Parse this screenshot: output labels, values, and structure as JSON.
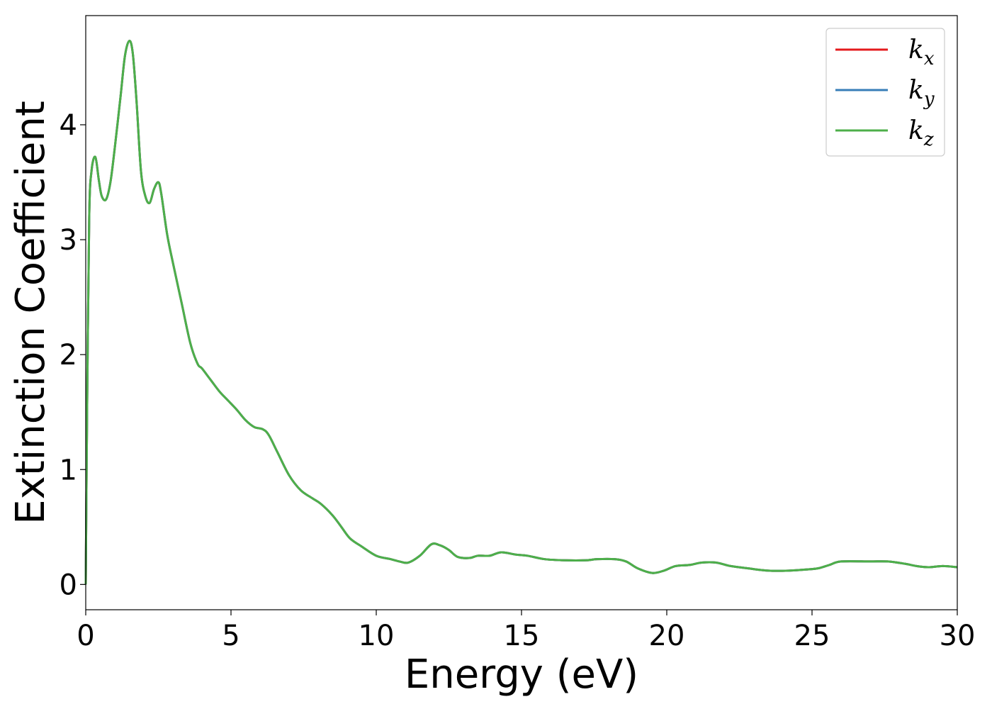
{
  "chart_data": {
    "type": "line",
    "title": "",
    "xlabel": "Energy (eV)",
    "ylabel": "Extinction Coefficient",
    "xlim": [
      0,
      30
    ],
    "ylim": [
      -0.22,
      4.95
    ],
    "xticks": [
      0,
      5,
      10,
      15,
      20,
      25,
      30
    ],
    "yticks": [
      0,
      1,
      2,
      3,
      4
    ],
    "grid": false,
    "legend": "top-right",
    "series": [
      {
        "name": "k",
        "sub": "x",
        "color": "#e41a1c"
      },
      {
        "name": "k",
        "sub": "y",
        "color": "#377eb8"
      },
      {
        "name": "k",
        "sub": "z",
        "color": "#4daf4a"
      }
    ],
    "x": [
      0,
      0.05,
      0.12,
      0.2,
      0.33,
      0.45,
      0.55,
      0.7,
      0.85,
      1.0,
      1.2,
      1.35,
      1.5,
      1.62,
      1.75,
      1.9,
      2.05,
      2.2,
      2.35,
      2.5,
      2.6,
      2.8,
      3.0,
      3.3,
      3.6,
      3.85,
      4.0,
      4.3,
      4.6,
      4.9,
      5.2,
      5.5,
      5.8,
      6.1,
      6.3,
      6.6,
      7.0,
      7.4,
      7.8,
      8.1,
      8.5,
      8.8,
      9.1,
      9.5,
      10.0,
      10.5,
      10.8,
      11.1,
      11.5,
      11.9,
      12.2,
      12.5,
      12.8,
      13.2,
      13.5,
      13.9,
      14.3,
      14.8,
      15.2,
      15.8,
      16.5,
      17.2,
      17.6,
      18.2,
      18.6,
      19.0,
      19.5,
      19.9,
      20.3,
      20.8,
      21.2,
      21.7,
      22.2,
      22.8,
      23.5,
      24.2,
      24.8,
      25.2,
      25.6,
      26.0,
      27.0,
      27.6,
      28.2,
      28.6,
      29.0,
      29.5,
      30.0
    ],
    "y": [
      0.0,
      1.6,
      3.2,
      3.6,
      3.72,
      3.52,
      3.38,
      3.35,
      3.5,
      3.8,
      4.25,
      4.6,
      4.73,
      4.62,
      4.2,
      3.6,
      3.38,
      3.32,
      3.44,
      3.5,
      3.4,
      3.05,
      2.8,
      2.45,
      2.1,
      1.92,
      1.88,
      1.78,
      1.68,
      1.6,
      1.52,
      1.43,
      1.37,
      1.35,
      1.3,
      1.15,
      0.95,
      0.82,
      0.75,
      0.7,
      0.6,
      0.5,
      0.4,
      0.33,
      0.25,
      0.22,
      0.2,
      0.19,
      0.25,
      0.35,
      0.34,
      0.3,
      0.24,
      0.23,
      0.25,
      0.25,
      0.28,
      0.26,
      0.25,
      0.22,
      0.21,
      0.21,
      0.22,
      0.22,
      0.2,
      0.14,
      0.1,
      0.12,
      0.16,
      0.17,
      0.19,
      0.19,
      0.16,
      0.14,
      0.12,
      0.12,
      0.13,
      0.14,
      0.17,
      0.2,
      0.2,
      0.2,
      0.18,
      0.16,
      0.15,
      0.16,
      0.15
    ]
  }
}
